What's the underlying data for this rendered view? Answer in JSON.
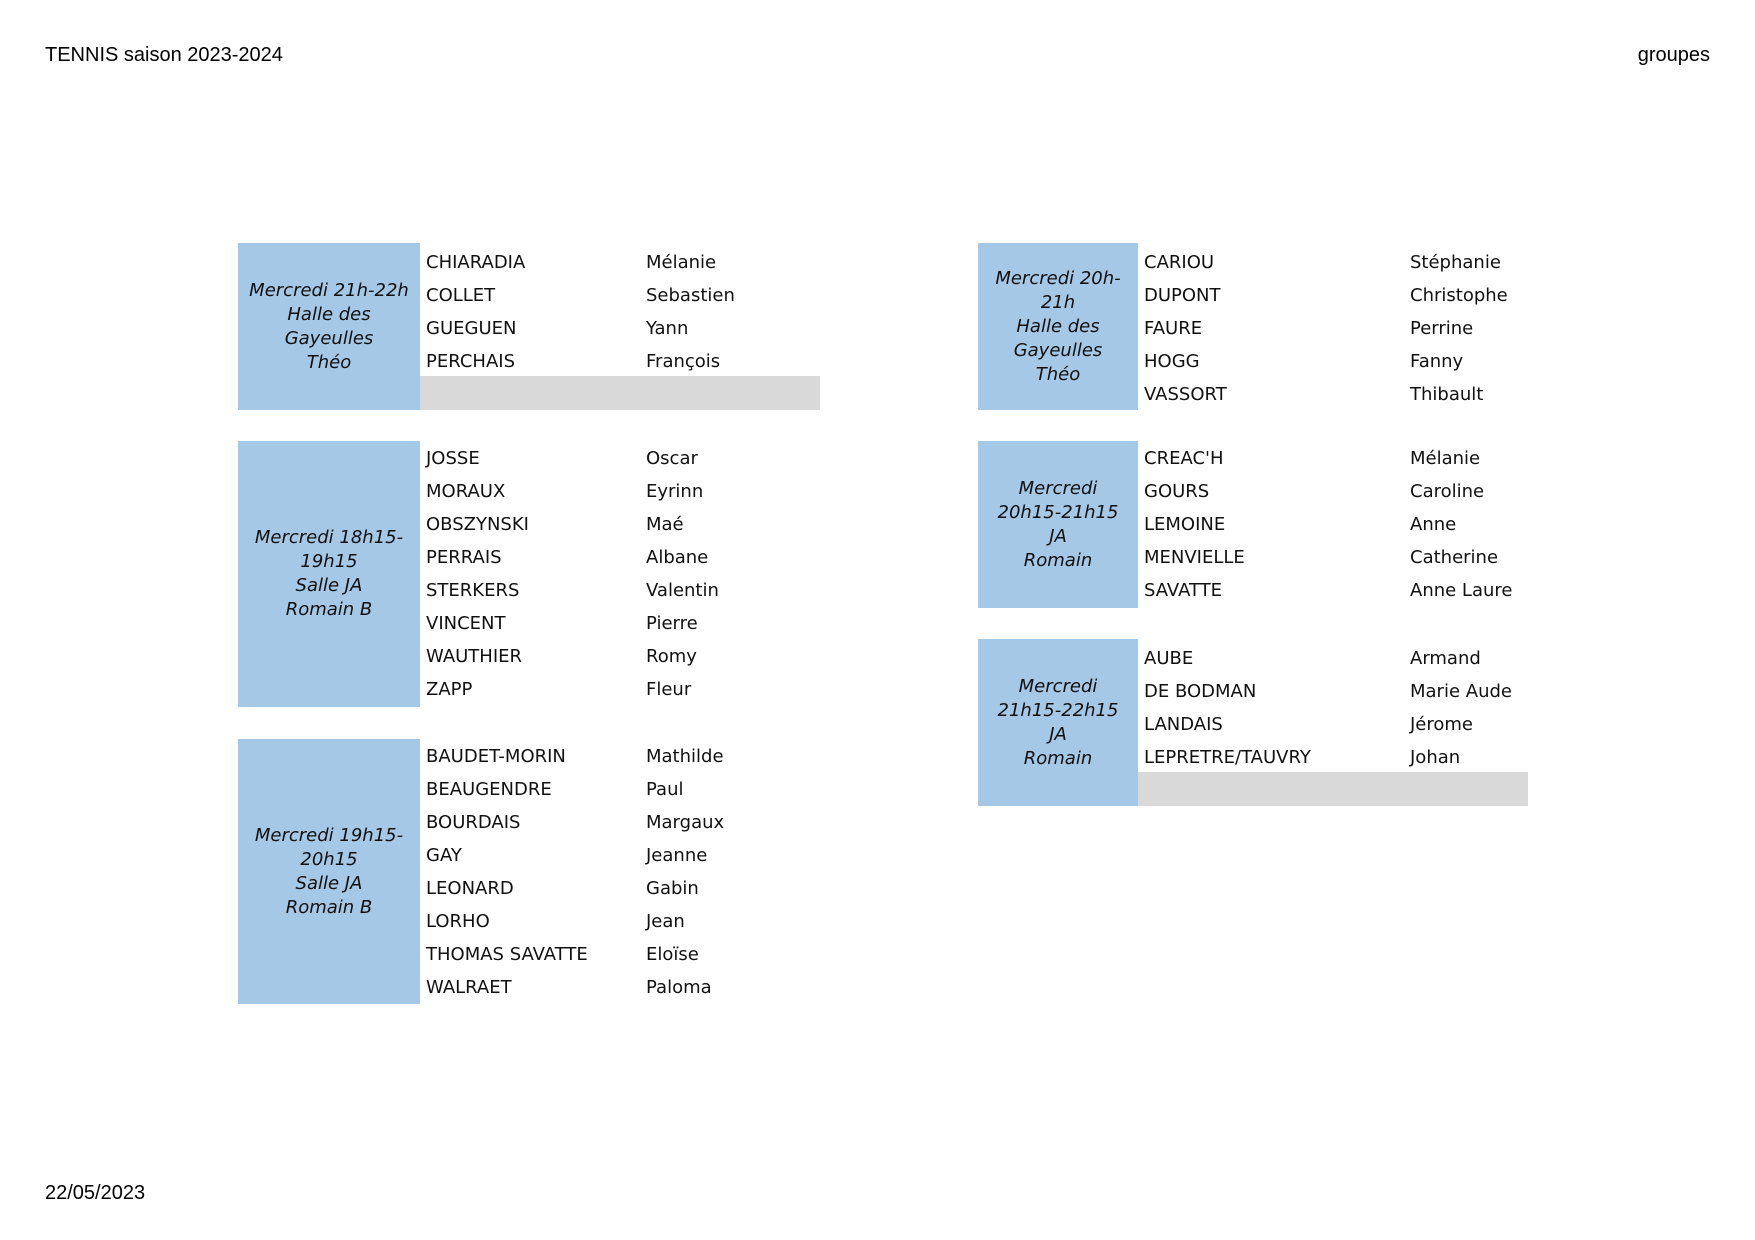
{
  "header": {
    "title": "TENNIS saison 2023-2024",
    "section": "groupes"
  },
  "footer": {
    "date": "22/05/2023"
  },
  "groups": [
    {
      "label": [
        "Mercredi 21h-22h",
        "Halle des",
        "Gayeulles",
        "Théo"
      ],
      "members": [
        {
          "last": "CHIARADIA",
          "first": "Mélanie"
        },
        {
          "last": "COLLET",
          "first": "Sebastien"
        },
        {
          "last": "GUEGUEN",
          "first": "Yann"
        },
        {
          "last": "PERCHAIS",
          "first": "François"
        }
      ]
    },
    {
      "label": [
        "Mercredi 18h15-",
        "19h15",
        "Salle JA",
        "Romain B"
      ],
      "members": [
        {
          "last": "JOSSE",
          "first": "Oscar"
        },
        {
          "last": "MORAUX",
          "first": "Eyrinn"
        },
        {
          "last": "OBSZYNSKI",
          "first": "Maé"
        },
        {
          "last": "PERRAIS",
          "first": "Albane"
        },
        {
          "last": "STERKERS",
          "first": "Valentin"
        },
        {
          "last": "VINCENT",
          "first": "Pierre"
        },
        {
          "last": "WAUTHIER",
          "first": "Romy"
        },
        {
          "last": "ZAPP",
          "first": "Fleur"
        }
      ]
    },
    {
      "label": [
        "Mercredi 19h15-",
        "20h15",
        "Salle JA",
        "Romain B"
      ],
      "members": [
        {
          "last": "BAUDET-MORIN",
          "first": "Mathilde"
        },
        {
          "last": "BEAUGENDRE",
          "first": "Paul"
        },
        {
          "last": "BOURDAIS",
          "first": "Margaux"
        },
        {
          "last": "GAY",
          "first": "Jeanne"
        },
        {
          "last": "LEONARD",
          "first": "Gabin"
        },
        {
          "last": "LORHO",
          "first": "Jean"
        },
        {
          "last": "THOMAS SAVATTE",
          "first": "Eloïse"
        },
        {
          "last": "WALRAET",
          "first": "Paloma"
        }
      ]
    },
    {
      "label": [
        "Mercredi 20h-",
        "21h",
        "Halle des",
        "Gayeulles",
        "Théo"
      ],
      "members": [
        {
          "last": "CARIOU",
          "first": "Stéphanie"
        },
        {
          "last": "DUPONT",
          "first": "Christophe"
        },
        {
          "last": "FAURE",
          "first": "Perrine"
        },
        {
          "last": "HOGG",
          "first": "Fanny"
        },
        {
          "last": "VASSORT",
          "first": "Thibault"
        }
      ]
    },
    {
      "label": [
        "Mercredi",
        "20h15-21h15",
        "JA",
        "Romain"
      ],
      "members": [
        {
          "last": "CREAC'H",
          "first": "Mélanie"
        },
        {
          "last": "GOURS",
          "first": "Caroline"
        },
        {
          "last": "LEMOINE",
          "first": "Anne"
        },
        {
          "last": "MENVIELLE",
          "first": "Catherine"
        },
        {
          "last": "SAVATTE",
          "first": "Anne Laure"
        }
      ]
    },
    {
      "label": [
        "Mercredi",
        "21h15-22h15",
        "JA",
        "Romain"
      ],
      "members": [
        {
          "last": "AUBE",
          "first": "Armand"
        },
        {
          "last": "DE BODMAN",
          "first": "Marie Aude"
        },
        {
          "last": "LANDAIS",
          "first": "Jérome"
        },
        {
          "last": "LEPRETRE/TAUVRY",
          "first": "Johan"
        }
      ]
    }
  ]
}
